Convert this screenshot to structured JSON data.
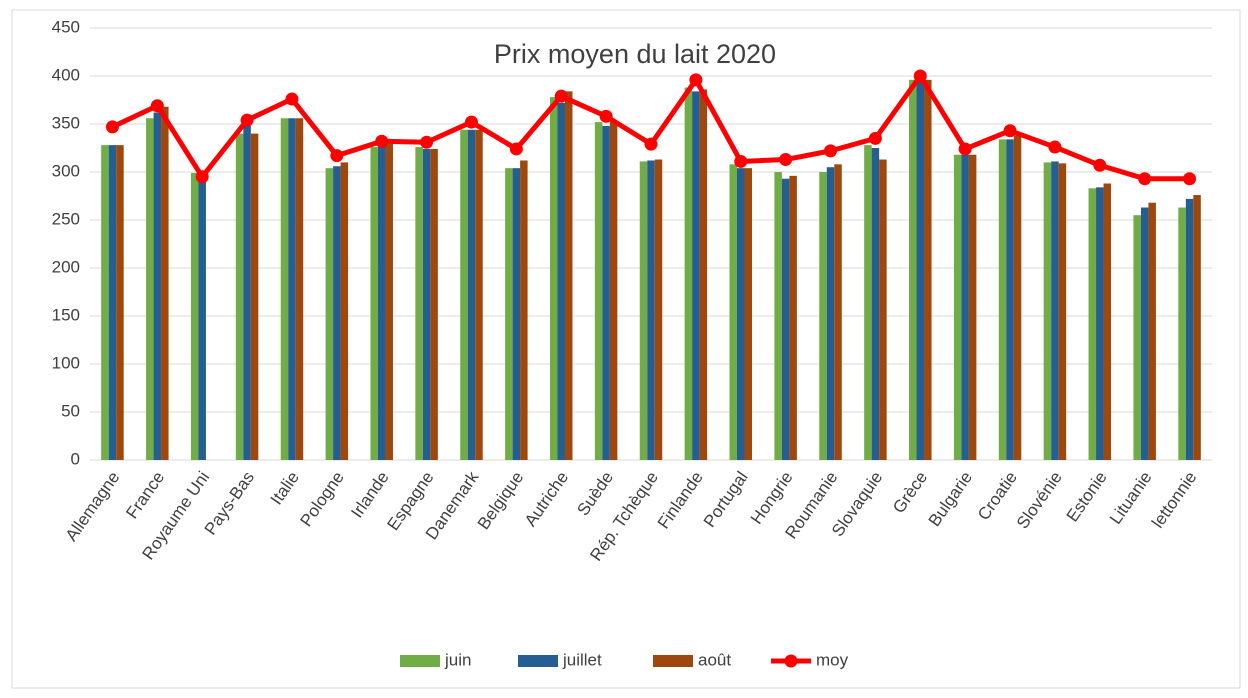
{
  "chart_data": {
    "type": "bar",
    "title": "Prix moyen du lait 2020",
    "categories": [
      "Allemagne",
      "France",
      "Royaume Uni",
      "Pays-Bas",
      "Italie",
      "Pologne",
      "Irlande",
      "Espagne",
      "Danemark",
      "Belgique",
      "Autriche",
      "Suède",
      "Rép. Tchèque",
      "Finlande",
      "Portugal",
      "Hongrie",
      "Roumanie",
      "Slovaquie",
      "Grèce",
      "Bulgarie",
      "Croatie",
      "Slovénie",
      "Estonie",
      "Lituanie",
      "lettonnie"
    ],
    "series": [
      {
        "name": "juin",
        "color": "#70ad47",
        "type": "bar",
        "values": [
          328,
          356,
          299,
          340,
          356,
          304,
          326,
          326,
          344,
          304,
          378,
          352,
          311,
          388,
          308,
          300,
          300,
          328,
          396,
          318,
          334,
          310,
          283,
          255,
          263
        ]
      },
      {
        "name": "juillet",
        "color": "#255e91",
        "type": "bar",
        "values": [
          328,
          362,
          296,
          348,
          356,
          306,
          328,
          324,
          344,
          304,
          372,
          348,
          312,
          384,
          304,
          293,
          305,
          325,
          394,
          318,
          334,
          311,
          284,
          263,
          272
        ]
      },
      {
        "name": "août",
        "color": "#9e480e",
        "type": "bar",
        "values": [
          328,
          368,
          null,
          340,
          356,
          310,
          330,
          324,
          344,
          312,
          384,
          352,
          313,
          386,
          304,
          296,
          308,
          313,
          396,
          318,
          338,
          309,
          288,
          268,
          276
        ]
      },
      {
        "name": "moy",
        "color": "#ff0000",
        "type": "line",
        "values": [
          347,
          369,
          295,
          354,
          376,
          317,
          332,
          331,
          352,
          324,
          379,
          358,
          329,
          396,
          311,
          313,
          322,
          335,
          400,
          324,
          343,
          326,
          307,
          293,
          293
        ]
      }
    ],
    "ylim": [
      0,
      450
    ],
    "yticks": [
      0,
      50,
      100,
      150,
      200,
      250,
      300,
      350,
      400,
      450
    ],
    "grid": true,
    "legend": "bottom"
  }
}
